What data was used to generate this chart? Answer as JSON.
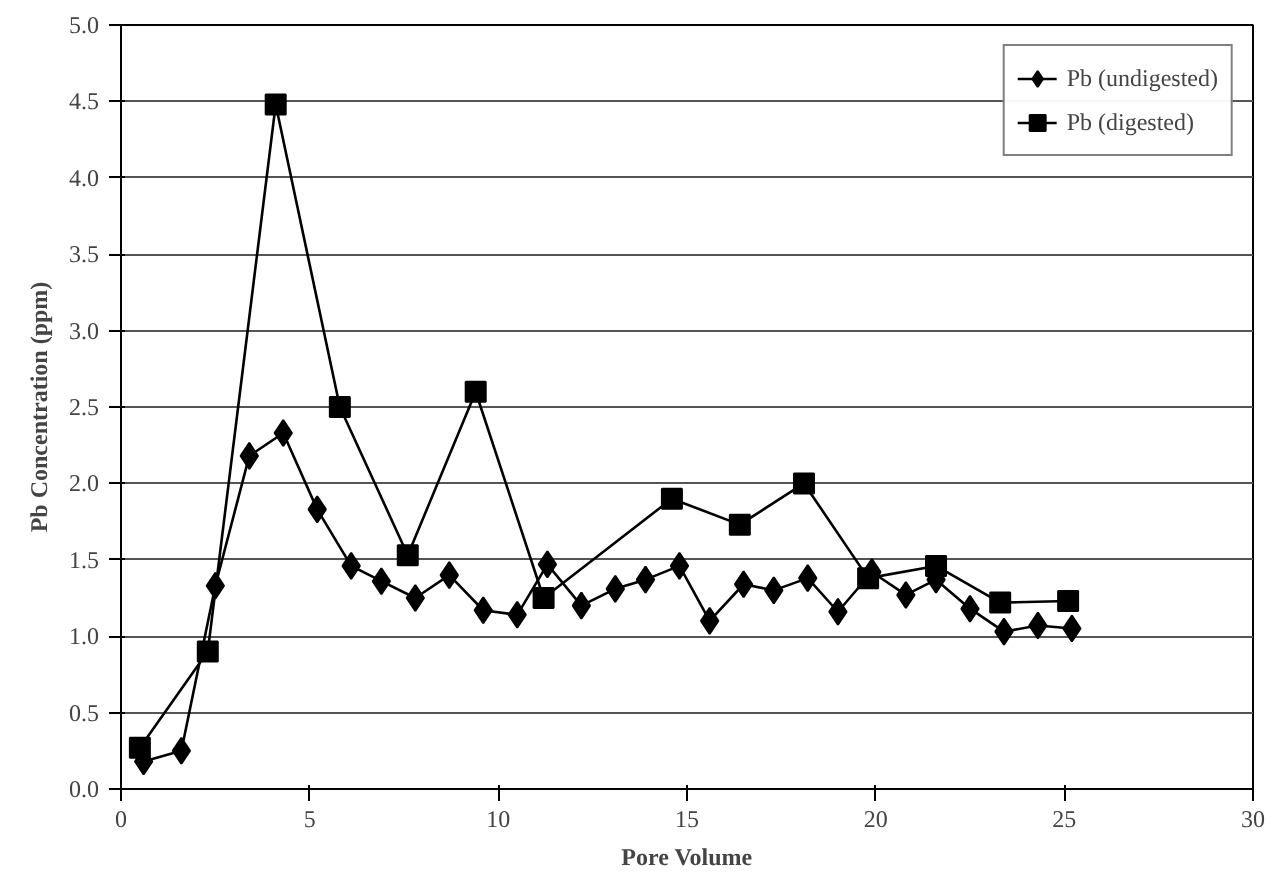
{
  "chart_data": {
    "type": "line",
    "xlabel": "Pore Volume",
    "ylabel": "Pb Concentration (ppm)",
    "xlim": [
      0,
      30
    ],
    "ylim": [
      0,
      5
    ],
    "xticks": [
      0,
      5,
      10,
      15,
      20,
      25,
      30
    ],
    "yticks": [
      {
        "value": 0,
        "label": "0.0"
      },
      {
        "value": 0.5,
        "label": "0.5"
      },
      {
        "value": 1,
        "label": "1.0"
      },
      {
        "value": 1.5,
        "label": "1.5"
      },
      {
        "value": 2,
        "label": "2.0"
      },
      {
        "value": 2.5,
        "label": "2.5"
      },
      {
        "value": 3,
        "label": "3.0"
      },
      {
        "value": 3.5,
        "label": "3.5"
      },
      {
        "value": 4,
        "label": "4.0"
      },
      {
        "value": 4.5,
        "label": "4.5"
      },
      {
        "value": 5,
        "label": "5.0"
      }
    ],
    "grid": "y",
    "legend": "top right",
    "line_style": "solid",
    "series": [
      {
        "name": "Pb (undigested)",
        "color": "#000000",
        "marker": "diamond",
        "x": [
          0.6,
          1.6,
          2.5,
          3.4,
          4.3,
          5.2,
          6.1,
          6.9,
          7.8,
          8.7,
          9.6,
          10.5,
          11.3,
          12.2,
          13.1,
          13.9,
          14.8,
          15.6,
          16.5,
          17.3,
          18.2,
          19.0,
          19.9,
          20.8,
          21.6,
          22.5,
          23.4,
          24.3,
          25.2
        ],
        "values": [
          0.18,
          0.25,
          1.33,
          2.18,
          2.33,
          1.83,
          1.46,
          1.36,
          1.25,
          1.4,
          1.17,
          1.14,
          1.47,
          1.2,
          1.31,
          1.37,
          1.46,
          1.1,
          1.34,
          1.3,
          1.38,
          1.16,
          1.42,
          1.27,
          1.37,
          1.18,
          1.03,
          1.07,
          1.05
        ]
      },
      {
        "name": "Pb (digested)",
        "color": "#000000",
        "marker": "square",
        "x": [
          0.5,
          2.3,
          4.1,
          5.8,
          7.6,
          9.4,
          11.2,
          14.6,
          16.4,
          18.1,
          19.8,
          21.6,
          23.3,
          25.1
        ],
        "values": [
          0.27,
          0.9,
          4.48,
          2.5,
          1.53,
          2.6,
          1.25,
          1.9,
          1.73,
          2.0,
          1.38,
          1.46,
          1.22,
          1.23
        ]
      }
    ]
  }
}
